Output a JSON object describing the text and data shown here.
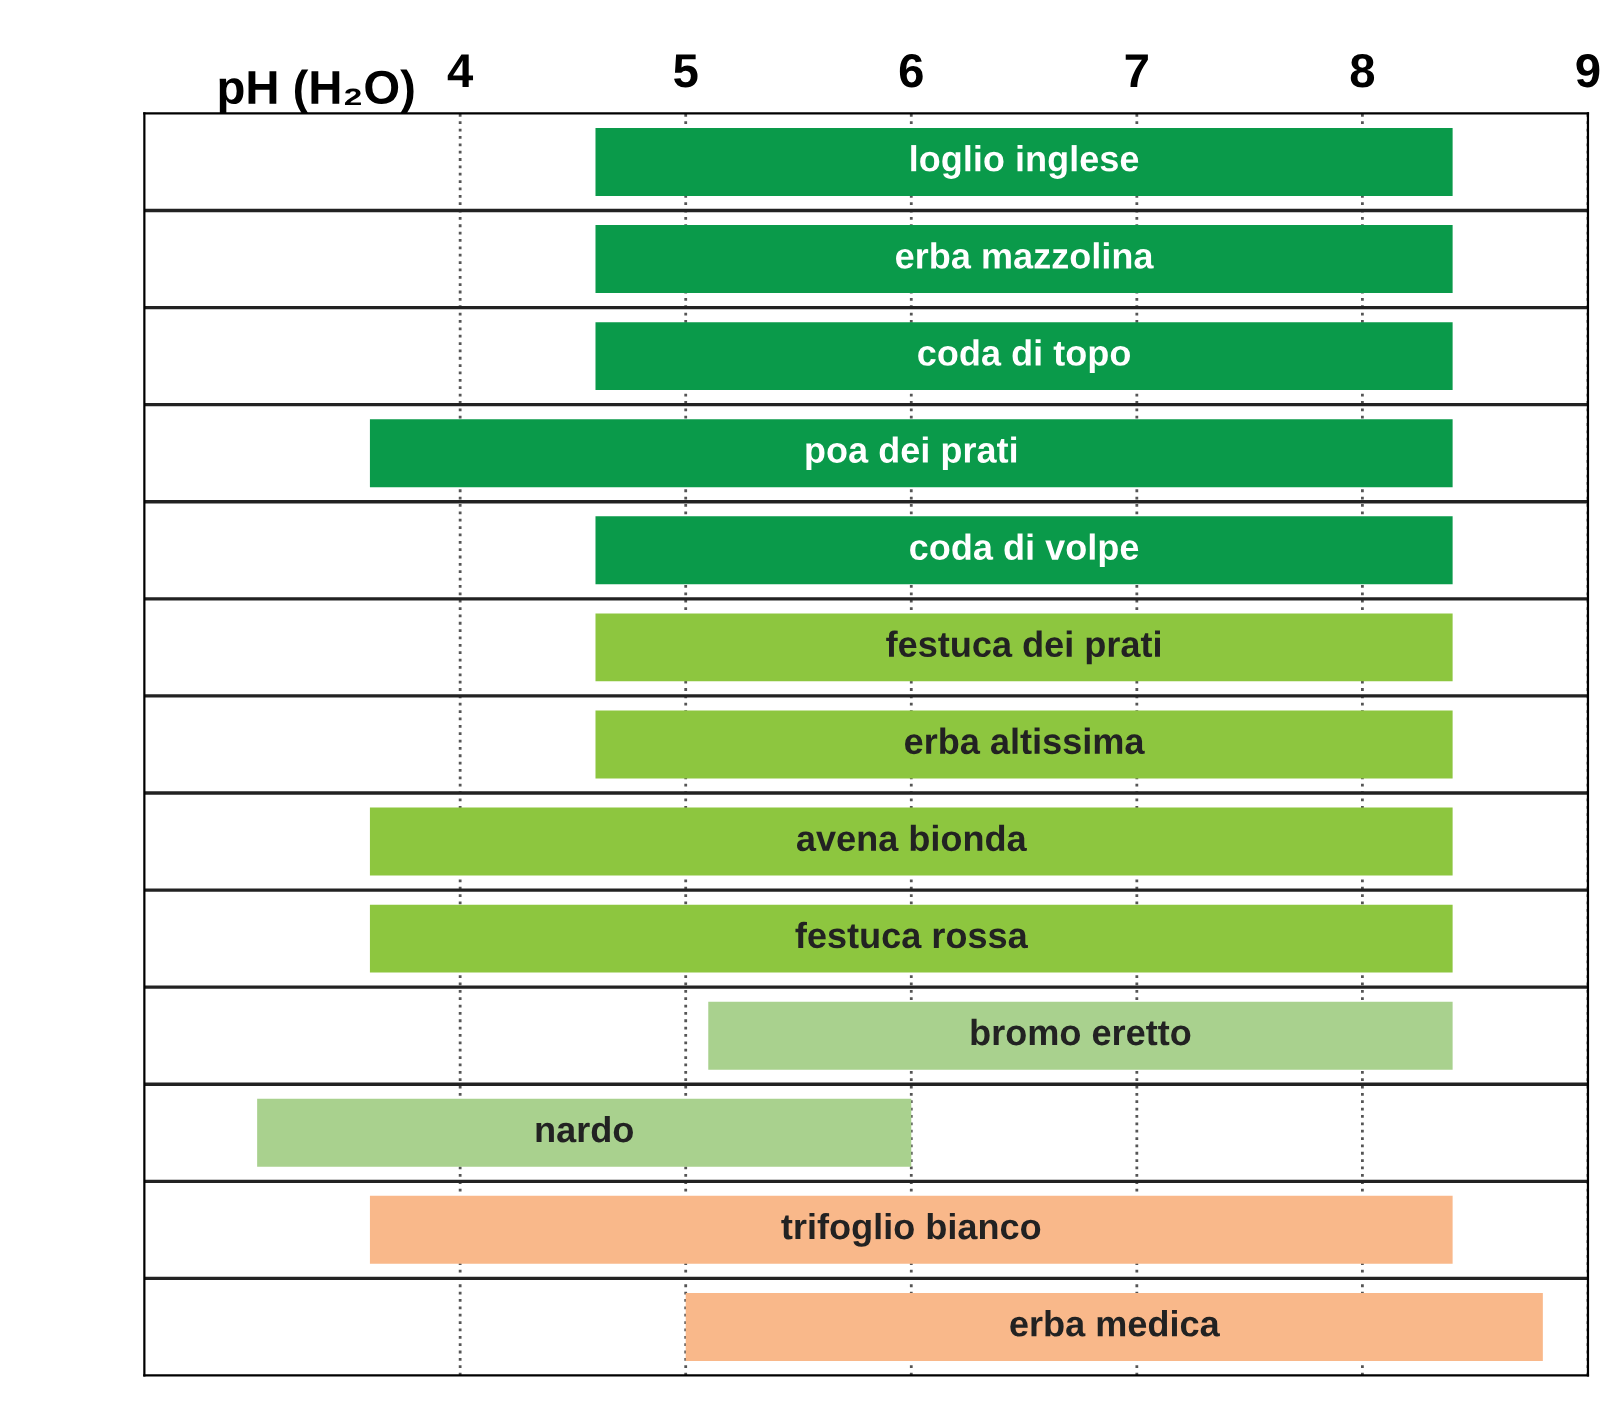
{
  "chart_data": {
    "type": "bar",
    "orientation": "horizontal",
    "xlabel": "pH (H₂O)",
    "categories": [
      "loglio inglese",
      "erba mazzolina",
      "coda di topo",
      "poa dei prati",
      "coda di volpe",
      "festuca dei prati",
      "erba altissima",
      "avena bionda",
      "festuca rossa",
      "bromo eretto",
      "nardo",
      "trifoglio bianco",
      "erba medica"
    ],
    "base": [
      4.6,
      4.6,
      4.6,
      3.6,
      4.6,
      4.6,
      4.6,
      3.6,
      3.6,
      5.1,
      3.1,
      3.6,
      5.0
    ],
    "values": [
      3.8,
      3.8,
      3.8,
      4.8,
      3.8,
      3.8,
      3.8,
      4.8,
      4.8,
      3.3,
      2.9,
      4.8,
      3.8
    ],
    "colors": [
      "#0a9a4a",
      "#0a9a4a",
      "#0a9a4a",
      "#0a9a4a",
      "#0a9a4a",
      "#8dc63f",
      "#8dc63f",
      "#8dc63f",
      "#8dc63f",
      "#a9d18e",
      "#a9d18e",
      "#f9b88a",
      "#f9b88a"
    ],
    "xlim": [
      2.6,
      9.0
    ],
    "xticks": [
      4,
      5,
      6,
      7,
      8,
      9
    ],
    "grid": "x"
  }
}
